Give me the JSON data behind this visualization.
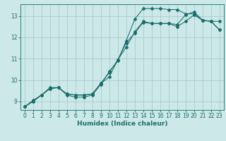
{
  "xlabel": "Humidex (Indice chaleur)",
  "bg_color": "#cce8e8",
  "grid_color": "#aacccc",
  "line_color": "#1a6e6a",
  "xlim": [
    -0.5,
    23.5
  ],
  "ylim": [
    8.6,
    13.55
  ],
  "yticks": [
    9,
    10,
    11,
    12,
    13
  ],
  "xticks": [
    0,
    1,
    2,
    3,
    4,
    5,
    6,
    7,
    8,
    9,
    10,
    11,
    12,
    13,
    14,
    15,
    16,
    17,
    18,
    19,
    20,
    21,
    22,
    23
  ],
  "line1_x": [
    0,
    1,
    2,
    3,
    4,
    5,
    6,
    7,
    8,
    9,
    10,
    11,
    12,
    13,
    14,
    15,
    16,
    17,
    18,
    19,
    20,
    21,
    22,
    23
  ],
  "line1_y": [
    8.75,
    9.05,
    9.3,
    9.65,
    9.65,
    9.3,
    9.2,
    9.2,
    9.3,
    9.8,
    10.4,
    10.9,
    11.85,
    12.85,
    13.35,
    13.35,
    13.35,
    13.3,
    13.3,
    13.1,
    13.1,
    12.8,
    12.75,
    12.75
  ],
  "line2_x": [
    0,
    1,
    2,
    3,
    4,
    5,
    6,
    7,
    8,
    9,
    10,
    11,
    12,
    13,
    14,
    15,
    16,
    17,
    18,
    19,
    20,
    21,
    22,
    23
  ],
  "line2_y": [
    8.75,
    9.0,
    9.3,
    9.6,
    9.65,
    9.35,
    9.3,
    9.3,
    9.35,
    9.85,
    10.15,
    10.95,
    11.55,
    12.25,
    12.75,
    12.65,
    12.65,
    12.65,
    12.6,
    13.05,
    13.2,
    12.8,
    12.75,
    12.35
  ],
  "line3_x": [
    0,
    1,
    2,
    3,
    4,
    5,
    6,
    7,
    8,
    9,
    10,
    11,
    12,
    13,
    14,
    15,
    16,
    17,
    18,
    19,
    20,
    21,
    22,
    23
  ],
  "line3_y": [
    8.75,
    9.0,
    9.3,
    9.6,
    9.65,
    9.35,
    9.3,
    9.3,
    9.35,
    9.85,
    10.35,
    10.95,
    11.75,
    12.2,
    12.7,
    12.65,
    12.65,
    12.65,
    12.5,
    12.75,
    13.05,
    12.8,
    12.75,
    12.35
  ]
}
